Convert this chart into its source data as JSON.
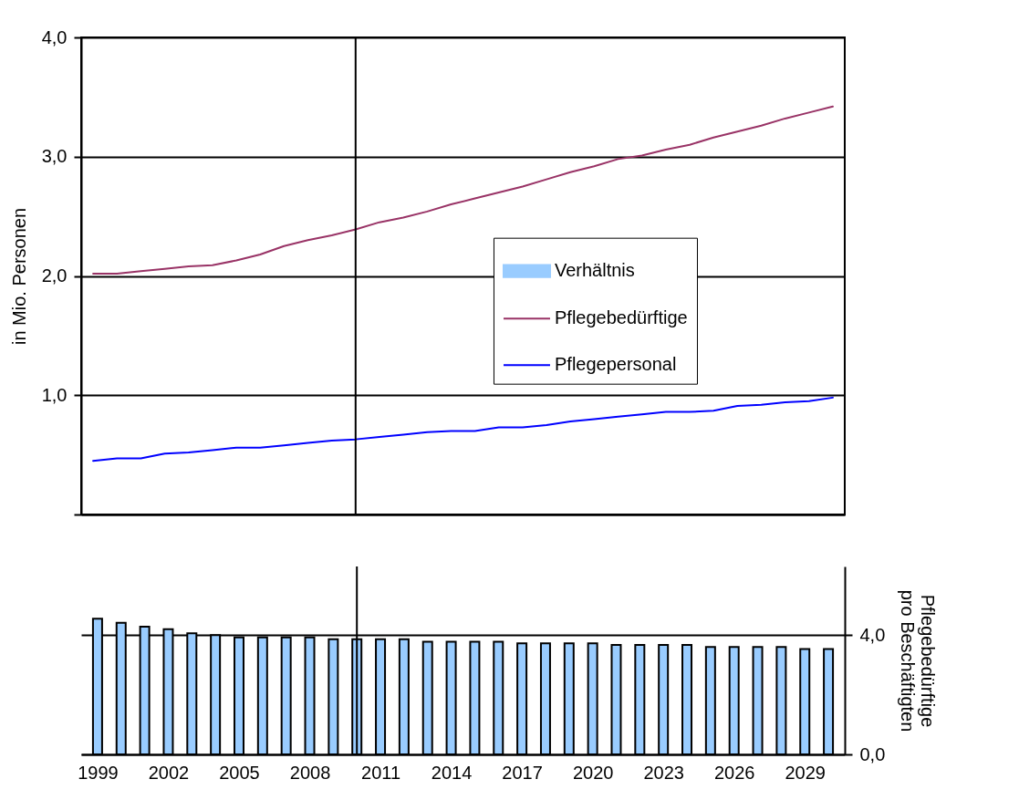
{
  "chart_data": [
    {
      "type": "line",
      "ylabel": "in Mio. Personen",
      "x": [
        1999,
        2000,
        2001,
        2002,
        2003,
        2004,
        2005,
        2006,
        2007,
        2008,
        2009,
        2010,
        2011,
        2012,
        2013,
        2014,
        2015,
        2016,
        2017,
        2018,
        2019,
        2020,
        2021,
        2022,
        2023,
        2024,
        2025,
        2026,
        2027,
        2028,
        2029,
        2030
      ],
      "xlim": [
        1998.5,
        2030.5
      ],
      "xticks": [
        1999,
        2002,
        2005,
        2008,
        2011,
        2014,
        2017,
        2020,
        2023,
        2026,
        2029
      ],
      "ylim": [
        0,
        4
      ],
      "yticks": [
        {
          "value": 0,
          "label": null
        },
        {
          "value": 1,
          "label": "1,0"
        },
        {
          "value": 2,
          "label": "2,0"
        },
        {
          "value": 3,
          "label": "3,0"
        },
        {
          "value": 4,
          "label": "4,0"
        }
      ],
      "grid": "y",
      "legend": "right",
      "tick_labels": "y",
      "ref_lines": [
        {
          "axis": "x",
          "value": 2010,
          "color": "#000000"
        }
      ],
      "series": [
        {
          "name": "Pflegebedürftige",
          "color": "#993366",
          "values": [
            2.02,
            2.02,
            2.04,
            2.06,
            2.08,
            2.09,
            2.13,
            2.18,
            2.25,
            2.3,
            2.34,
            2.39,
            2.45,
            2.49,
            2.54,
            2.6,
            2.65,
            2.7,
            2.75,
            2.81,
            2.87,
            2.92,
            2.98,
            3.01,
            3.06,
            3.1,
            3.16,
            3.21,
            3.26,
            3.32,
            3.37,
            3.42
          ]
        },
        {
          "name": "Pflegepersonal",
          "color": "#0000ff",
          "values": [
            0.45,
            0.47,
            0.47,
            0.51,
            0.52,
            0.54,
            0.56,
            0.56,
            0.58,
            0.6,
            0.62,
            0.63,
            0.65,
            0.67,
            0.69,
            0.7,
            0.7,
            0.73,
            0.73,
            0.75,
            0.78,
            0.8,
            0.82,
            0.84,
            0.86,
            0.86,
            0.87,
            0.91,
            0.92,
            0.94,
            0.95,
            0.98
          ]
        }
      ]
    },
    {
      "type": "bar",
      "y2label": "Pflegebedürftige\npro Beschäftigten",
      "x": [
        1999,
        2000,
        2001,
        2002,
        2003,
        2004,
        2005,
        2006,
        2007,
        2008,
        2009,
        2010,
        2011,
        2012,
        2013,
        2014,
        2015,
        2016,
        2017,
        2018,
        2019,
        2020,
        2021,
        2022,
        2023,
        2024,
        2025,
        2026,
        2027,
        2028,
        2029,
        2030
      ],
      "xlim": [
        1998.5,
        2030.5
      ],
      "xticks": [
        1999,
        2002,
        2005,
        2008,
        2011,
        2014,
        2017,
        2020,
        2023,
        2026,
        2029
      ],
      "y2lim": [
        0,
        6.3
      ],
      "y2ticks": [
        {
          "value": 0,
          "label": "0,0"
        },
        {
          "value": 4,
          "label": "4,0"
        }
      ],
      "grid": "y",
      "ref_lines": [
        {
          "axis": "x",
          "value": 2010,
          "color": "#000000"
        }
      ],
      "series": [
        {
          "name": "Verhältnis",
          "color": "#99ccff",
          "axis": "y2",
          "values": [
            4.55,
            4.41,
            4.28,
            4.2,
            4.06,
            4.0,
            3.92,
            3.92,
            3.92,
            3.92,
            3.86,
            3.86,
            3.86,
            3.86,
            3.78,
            3.78,
            3.78,
            3.78,
            3.72,
            3.72,
            3.72,
            3.72,
            3.67,
            3.67,
            3.67,
            3.67,
            3.6,
            3.6,
            3.6,
            3.6,
            3.53,
            3.53
          ]
        }
      ]
    }
  ]
}
